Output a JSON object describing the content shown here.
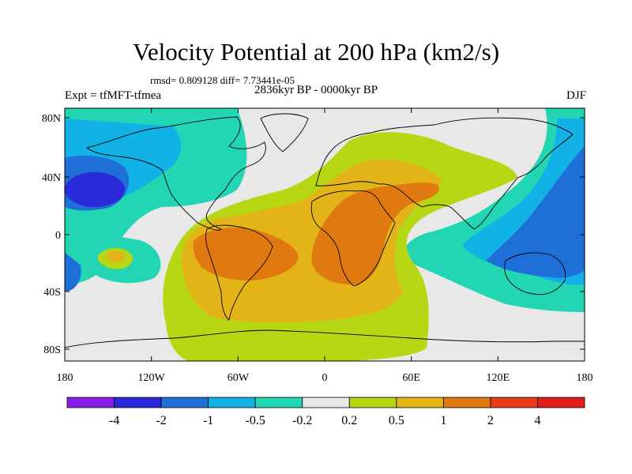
{
  "header": {
    "title": "Velocity Potential at 200 hPa (km2/s)",
    "stats": "rmsd= 0.809128 diff= 7.73441e-05",
    "experiment": "Expt = tfMFT-tfmea",
    "period": "2836kyr BP - 0000kyr BP",
    "season": "DJF"
  },
  "axes": {
    "lat_labels": [
      "80N",
      "40N",
      "0",
      "40S",
      "80S"
    ],
    "lon_labels": [
      "180",
      "120W",
      "60W",
      "0",
      "60E",
      "120E",
      "180"
    ]
  },
  "colorbar": {
    "labels": [
      "-4",
      "-2",
      "-1",
      "-0.5",
      "-0.2",
      "0.2",
      "0.5",
      "1",
      "2",
      "4"
    ],
    "colors": [
      "#8a1ee6",
      "#2a2ad8",
      "#1f6fd8",
      "#12b2e6",
      "#22d6b4",
      "#e8e8e8",
      "#b7d614",
      "#e2b418",
      "#e07a10",
      "#e83c18",
      "#e01d1d"
    ]
  },
  "map_colors": {
    "ocean_bg": "#e8e8e8",
    "pos_1": "#b7d614",
    "pos_2": "#e2b418",
    "pos_3": "#e07a10",
    "neg_1": "#22d6b4",
    "neg_2": "#12b2e6",
    "neg_3": "#1f6fd8",
    "neg_4": "#2a2ad8"
  }
}
